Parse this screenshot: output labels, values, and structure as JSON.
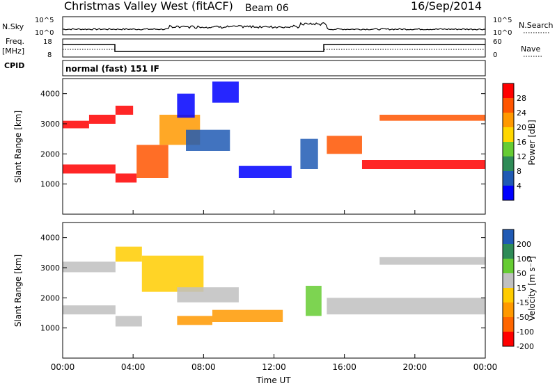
{
  "header": {
    "title": "Christmas Valley West (fitACF)",
    "beam": "Beam 06",
    "date": "16/Sep/2014"
  },
  "panels": {
    "nsky_label": "N.Sky",
    "nsearch_label": "N.Search",
    "freq_label_1": "Freq.",
    "freq_label_2": "[MHz]",
    "nave_label": "Nave",
    "cpid_label": "CPID",
    "cpid_text": "normal (fast) 151 IF",
    "noise_ticks": [
      "10^5",
      "10^0"
    ],
    "freq_ticks": [
      "18",
      "8"
    ],
    "nave_ticks": [
      "60",
      "0"
    ]
  },
  "colors": {
    "power": [
      "#0000ff",
      "#205ab4",
      "#2e8b57",
      "#66cc33",
      "#ffd700",
      "#ff9900",
      "#ff5500",
      "#ff0000"
    ],
    "velocity": [
      "#ff0000",
      "#ff6600",
      "#ff9900",
      "#ffcc00",
      "#c0c0c0",
      "#66cc33",
      "#2e8b57",
      "#205ab4"
    ]
  },
  "chart_data": [
    {
      "type": "heatmap",
      "name": "power",
      "ylabel": "Slant Range [km]",
      "ylim": [
        0,
        4500
      ],
      "y_ticks": [
        1000,
        2000,
        3000,
        4000
      ],
      "colorbar_label": "Power [dB]",
      "colorbar_ticks": [
        "28",
        "24",
        "20",
        "16",
        "12",
        "8",
        "4"
      ],
      "regions": [
        {
          "x": [
            0.0,
            1.5
          ],
          "y": [
            2850,
            3100
          ],
          "level": 7
        },
        {
          "x": [
            1.5,
            3.0
          ],
          "y": [
            3000,
            3300
          ],
          "level": 7
        },
        {
          "x": [
            3.0,
            4.0
          ],
          "y": [
            3300,
            3600
          ],
          "level": 7
        },
        {
          "x": [
            0.0,
            3.0
          ],
          "y": [
            1350,
            1650
          ],
          "level": 7
        },
        {
          "x": [
            3.0,
            4.2
          ],
          "y": [
            1050,
            1350
          ],
          "level": 7
        },
        {
          "x": [
            4.2,
            6.0
          ],
          "y": [
            1200,
            2300
          ],
          "level": 6
        },
        {
          "x": [
            5.5,
            7.8
          ],
          "y": [
            2300,
            3300
          ],
          "level": 5
        },
        {
          "x": [
            7.0,
            9.5
          ],
          "y": [
            2100,
            2800
          ],
          "level": 1
        },
        {
          "x": [
            6.5,
            7.5
          ],
          "y": [
            3200,
            4000
          ],
          "level": 0
        },
        {
          "x": [
            8.5,
            10.0
          ],
          "y": [
            3700,
            4400
          ],
          "level": 0
        },
        {
          "x": [
            10.0,
            13.0
          ],
          "y": [
            1200,
            1600
          ],
          "level": 0
        },
        {
          "x": [
            13.5,
            14.5
          ],
          "y": [
            1500,
            2500
          ],
          "level": 1
        },
        {
          "x": [
            15.0,
            17.0
          ],
          "y": [
            2000,
            2600
          ],
          "level": 6
        },
        {
          "x": [
            17.0,
            24.0
          ],
          "y": [
            1500,
            1800
          ],
          "level": 7
        },
        {
          "x": [
            18.0,
            24.0
          ],
          "y": [
            3100,
            3300
          ],
          "level": 6
        }
      ]
    },
    {
      "type": "heatmap",
      "name": "velocity",
      "xlabel": "Time UT",
      "ylabel": "Slant Range [km]",
      "ylim": [
        0,
        4500
      ],
      "y_ticks": [
        1000,
        2000,
        3000,
        4000
      ],
      "x_ticks": [
        "00:00",
        "04:00",
        "08:00",
        "12:00",
        "16:00",
        "20:00",
        "00:00"
      ],
      "colorbar_label": "Velocity [m s⁻¹]",
      "colorbar_ticks": [
        "200",
        "100",
        "50",
        "15",
        "-15",
        "-50",
        "-100",
        "-200"
      ],
      "regions": [
        {
          "x": [
            0.0,
            3.0
          ],
          "y": [
            2850,
            3200
          ],
          "level": 4
        },
        {
          "x": [
            3.0,
            4.5
          ],
          "y": [
            3200,
            3700
          ],
          "level": 3
        },
        {
          "x": [
            0.0,
            3.0
          ],
          "y": [
            1450,
            1750
          ],
          "level": 4
        },
        {
          "x": [
            3.0,
            4.5
          ],
          "y": [
            1050,
            1400
          ],
          "level": 4
        },
        {
          "x": [
            4.5,
            8.0
          ],
          "y": [
            2200,
            3400
          ],
          "level": 3
        },
        {
          "x": [
            6.5,
            10.0
          ],
          "y": [
            1850,
            2350
          ],
          "level": 4
        },
        {
          "x": [
            6.5,
            8.5
          ],
          "y": [
            1100,
            1400
          ],
          "level": 2
        },
        {
          "x": [
            8.5,
            12.5
          ],
          "y": [
            1200,
            1600
          ],
          "level": 2
        },
        {
          "x": [
            13.8,
            14.7
          ],
          "y": [
            1400,
            2400
          ],
          "level": 5
        },
        {
          "x": [
            15.0,
            24.0
          ],
          "y": [
            1450,
            2000
          ],
          "level": 4
        },
        {
          "x": [
            18.0,
            24.0
          ],
          "y": [
            3100,
            3350
          ],
          "level": 4
        }
      ]
    }
  ]
}
